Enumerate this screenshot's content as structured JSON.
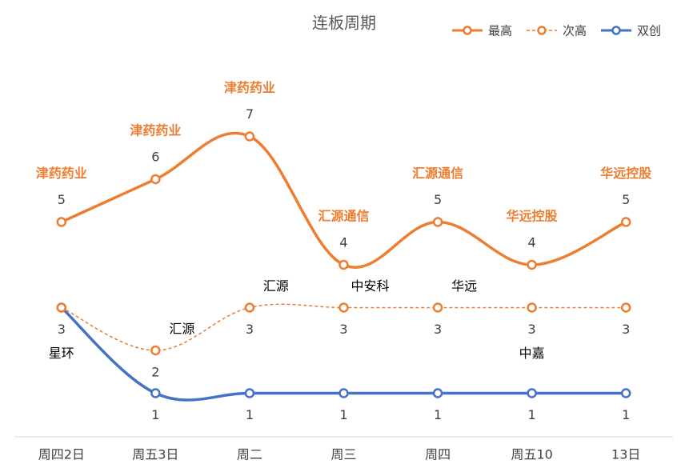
{
  "chart_data": {
    "type": "line",
    "title": "连板周期",
    "categories": [
      "周四2日",
      "周五3日",
      "周二",
      "周三",
      "周四",
      "周五10",
      "13日"
    ],
    "series": [
      {
        "name": "最高",
        "color": "#ED7D31",
        "dashed": false,
        "values": [
          5,
          6,
          7,
          4,
          5,
          4,
          5
        ],
        "point_labels": [
          "津药药业",
          "津药药业",
          "津药药业",
          "汇源通信",
          "汇源通信",
          "华远控股",
          "华远控股"
        ]
      },
      {
        "name": "次高",
        "color": "#ED7D31",
        "dashed": true,
        "values": [
          3,
          2,
          3,
          3,
          3,
          3,
          3
        ],
        "point_labels": [
          "星环",
          "汇源",
          "汇源",
          "中安科",
          "华远",
          "中嘉",
          null
        ]
      },
      {
        "name": "双创",
        "color": "#4472C4",
        "dashed": false,
        "values": [
          3,
          1,
          1,
          1,
          1,
          1,
          1
        ],
        "value_labels": [
          null,
          "1",
          "1",
          "1",
          "1",
          "1",
          "1"
        ]
      }
    ],
    "ylim": [
      0,
      9
    ],
    "legend": "top-right"
  }
}
